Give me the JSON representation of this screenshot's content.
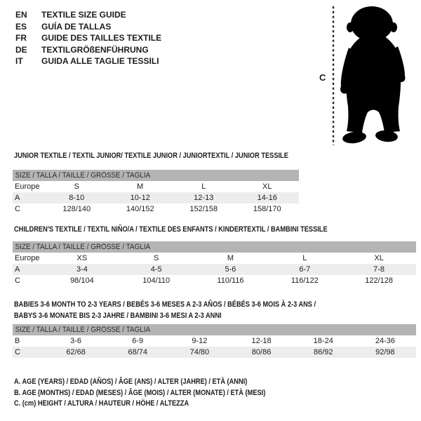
{
  "colors": {
    "band_bg": "#b4b4b4",
    "row_shaded_bg": "#ededed",
    "ink": "#1c1c1c",
    "silhouette": "#000000"
  },
  "languages": [
    {
      "code": "EN",
      "label": "TEXTILE SIZE GUIDE"
    },
    {
      "code": "ES",
      "label": "GUÍA DE TALLAS"
    },
    {
      "code": "FR",
      "label": "GUIDE DES TAILLES TEXTILE"
    },
    {
      "code": "DE",
      "label": "TEXTILGRÖßENFÜHRUNG"
    },
    {
      "code": "IT",
      "label": "GUIDA ALLE TAGLIE TESSILI"
    }
  ],
  "figure": {
    "measure_label": "C"
  },
  "tables": [
    {
      "title_lines": [
        "JUNIOR TEXTILE / TEXTIL JUNIOR/ TEXTILE JUNIOR / JUNIORTEXTIL / JUNIOR TESSILE"
      ],
      "size_header": "SIZE / TALLA / TAILLE / GRÖSSE / TAGLIA",
      "rows": [
        {
          "label": "Europe",
          "values": [
            "S",
            "M",
            "L",
            "XL"
          ],
          "shaded": false
        },
        {
          "label": "A",
          "values": [
            "8-10",
            "10-12",
            "12-13",
            "14-16"
          ],
          "shaded": true
        },
        {
          "label": "C",
          "values": [
            "128/140",
            "140/152",
            "152/158",
            "158/170"
          ],
          "shaded": false
        }
      ]
    },
    {
      "title_lines": [
        "CHILDREN'S TEXTILE / TEXTIL NIÑO/A / TEXTILE DES ENFANTS / KINDERTEXTIL / BAMBINI TESSILE"
      ],
      "size_header": "SIZE / TALLA / TAILLE / GRÖSSE / TAGLIA",
      "rows": [
        {
          "label": "Europe",
          "values": [
            "XS",
            "S",
            "M",
            "L",
            "XL"
          ],
          "shaded": false
        },
        {
          "label": "A",
          "values": [
            "3-4",
            "4-5",
            "5-6",
            "6-7",
            "7-8"
          ],
          "shaded": true
        },
        {
          "label": "C",
          "values": [
            "98/104",
            "104/110",
            "110/116",
            "116/122",
            "122/128"
          ],
          "shaded": false
        }
      ]
    },
    {
      "title_lines": [
        "BABIES 3-6 MONTH TO 2-3 YEARS / BEBÉS 3-6 MESES A 2-3 AÑOS / BÉBÉS 3-6 MOIS À 2-3 ANS /",
        "BABYS 3-6 MONATE BIS 2-3 JAHRE / BAMBINI 3-6 MESI A 2-3 ANNI"
      ],
      "size_header": "SIZE / TALLA / TAILLE / GRÖSSE / TAGLIA",
      "rows": [
        {
          "label": "B",
          "values": [
            "3-6",
            "6-9",
            "9-12",
            "12-18",
            "18-24",
            "24-36"
          ],
          "shaded": false
        },
        {
          "label": "C",
          "values": [
            "62/68",
            "68/74",
            "74/80",
            "80/86",
            "86/92",
            "92/98"
          ],
          "shaded": true
        }
      ]
    }
  ],
  "footnotes": [
    "A. AGE (YEARS) / EDAD (AÑOS) / ÂGE (ANS) / ALTER (JAHRE) / ETÀ (ANNI)",
    "B. AGE (MONTHS) / EDAD (MESES) / ÂGE (MOIS) / ALTER (MONATE) / ETÀ (MESI)",
    "C. (cm) HEIGHT / ALTURA / HAUTEUR / HÖHE / ALTEZZA"
  ]
}
